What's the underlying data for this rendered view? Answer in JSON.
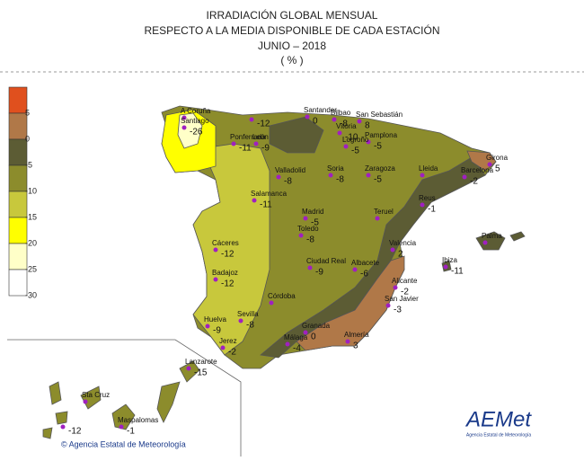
{
  "header": {
    "lines": [
      "IRRADIACIÓN GLOBAL MENSUAL",
      "RESPECTO A LA MEDIA DISPONIBLE DE CADA ESTACIÓN",
      "JUNIO – 2018",
      "( % )"
    ]
  },
  "legend": {
    "labels": [
      5,
      0,
      -5,
      -10,
      -15,
      -20,
      -25,
      -30
    ],
    "colors": [
      "#e0501e",
      "#b07848",
      "#5c5c34",
      "#8c8c2c",
      "#c8c83c",
      "#ffff00",
      "#ffffc8",
      "#ffffff"
    ]
  },
  "stations": [
    {
      "name": "A Coruña",
      "value": null
    },
    {
      "name": "Santiago",
      "value": -26
    },
    {
      "name": null,
      "value": -12
    },
    {
      "name": "Ponferrada",
      "value": -11
    },
    {
      "name": "León",
      "value": -9
    },
    {
      "name": "Santander",
      "value": 0
    },
    {
      "name": "Bilbao",
      "value": -8
    },
    {
      "name": "San Sebastián",
      "value": 8
    },
    {
      "name": "Vitoria",
      "value": -10
    },
    {
      "name": "Pamplona",
      "value": -5
    },
    {
      "name": "Logroño",
      "value": -5
    },
    {
      "name": "Soria",
      "value": -8
    },
    {
      "name": "Zaragoza",
      "value": -5
    },
    {
      "name": "Lleida",
      "value": null
    },
    {
      "name": "Girona",
      "value": 5
    },
    {
      "name": "Barcelona",
      "value": -2
    },
    {
      "name": "Reus",
      "value": -1
    },
    {
      "name": "Valladolid",
      "value": -8
    },
    {
      "name": "Salamanca",
      "value": -11
    },
    {
      "name": "Madrid",
      "value": -5
    },
    {
      "name": "Toledo",
      "value": -8
    },
    {
      "name": "Teruel",
      "value": null
    },
    {
      "name": "Valencia",
      "value": 2
    },
    {
      "name": "Palma",
      "value": null
    },
    {
      "name": "Ibiza",
      "value": -11
    },
    {
      "name": "Cáceres",
      "value": -12
    },
    {
      "name": "Badajoz",
      "value": -12
    },
    {
      "name": "Ciudad Real",
      "value": -9
    },
    {
      "name": "Albacete",
      "value": -6
    },
    {
      "name": "Alicante",
      "value": -2
    },
    {
      "name": "San Javier",
      "value": -3
    },
    {
      "name": "Córdoba",
      "value": null
    },
    {
      "name": "Sevilla",
      "value": -8
    },
    {
      "name": "Huelva",
      "value": -9
    },
    {
      "name": "Granada",
      "value": 0
    },
    {
      "name": "Almería",
      "value": 3
    },
    {
      "name": "Málaga",
      "value": -4
    },
    {
      "name": "Jerez",
      "value": -2
    },
    {
      "name": "Lanzarote",
      "value": -15
    },
    {
      "name": "Sta Cruz",
      "value": null
    },
    {
      "name": "Maspalomas",
      "value": -1
    },
    {
      "name": null,
      "value": -12
    }
  ],
  "footer": {
    "copyright": "© Agencia Estatal de Meteorología"
  },
  "logo": {
    "text": "AEMet",
    "subtitle": "Agencia Estatal de Meteorología"
  }
}
